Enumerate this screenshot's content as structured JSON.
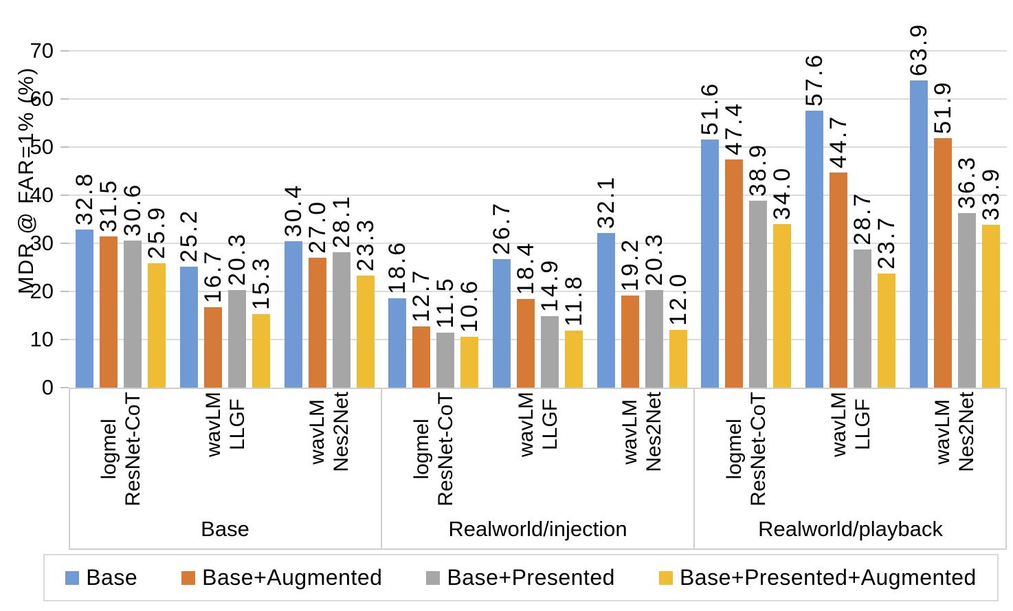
{
  "chart_data": {
    "type": "bar",
    "title": "",
    "ylabel": "MDR @ FAR=1% (%)",
    "xlabel": "",
    "ylim": [
      0,
      70
    ],
    "yticks": [
      0,
      10,
      20,
      30,
      40,
      50,
      60,
      70
    ],
    "grid": true,
    "legend_position": "bottom",
    "value_label_decimals": 1,
    "value_label_rotation": 90,
    "groups": [
      "Base",
      "Realworld/injection",
      "Realworld/playback"
    ],
    "clusters": [
      {
        "group": 0,
        "label_lines": [
          "logmel",
          "ResNet-CoT"
        ]
      },
      {
        "group": 0,
        "label_lines": [
          "wavLM",
          "LLGF"
        ]
      },
      {
        "group": 0,
        "label_lines": [
          "wavLM",
          "Nes2Net"
        ]
      },
      {
        "group": 1,
        "label_lines": [
          "logmel",
          "ResNet-CoT"
        ]
      },
      {
        "group": 1,
        "label_lines": [
          "wavLM",
          "LLGF"
        ]
      },
      {
        "group": 1,
        "label_lines": [
          "wavLM",
          "Nes2Net"
        ]
      },
      {
        "group": 2,
        "label_lines": [
          "logmel",
          "ResNet-CoT"
        ]
      },
      {
        "group": 2,
        "label_lines": [
          "wavLM",
          "LLGF"
        ]
      },
      {
        "group": 2,
        "label_lines": [
          "wavLM",
          "Nes2Net"
        ]
      }
    ],
    "series": [
      {
        "name": "Base",
        "color": "#6F9AD3",
        "values": [
          32.8,
          25.2,
          30.4,
          18.6,
          26.7,
          32.1,
          51.6,
          57.6,
          63.9
        ]
      },
      {
        "name": "Base+Augmented",
        "color": "#D57B37",
        "values": [
          31.5,
          16.7,
          27.0,
          12.7,
          18.4,
          19.2,
          47.4,
          44.7,
          51.9
        ]
      },
      {
        "name": "Base+Presented",
        "color": "#A6A6A6",
        "values": [
          30.6,
          20.3,
          28.1,
          11.5,
          14.9,
          20.3,
          38.9,
          28.7,
          36.3
        ]
      },
      {
        "name": "Base+Presented+Augmented",
        "color": "#EEBD33",
        "values": [
          25.9,
          15.3,
          23.3,
          10.6,
          11.8,
          12.0,
          34.0,
          23.7,
          33.9
        ]
      }
    ]
  },
  "colors": {
    "gridline": "#DCDCDC",
    "axis_box": "#CFCFCF",
    "tick": "#BFBFBF",
    "text": "#000000",
    "background": "#FFFFFF"
  }
}
